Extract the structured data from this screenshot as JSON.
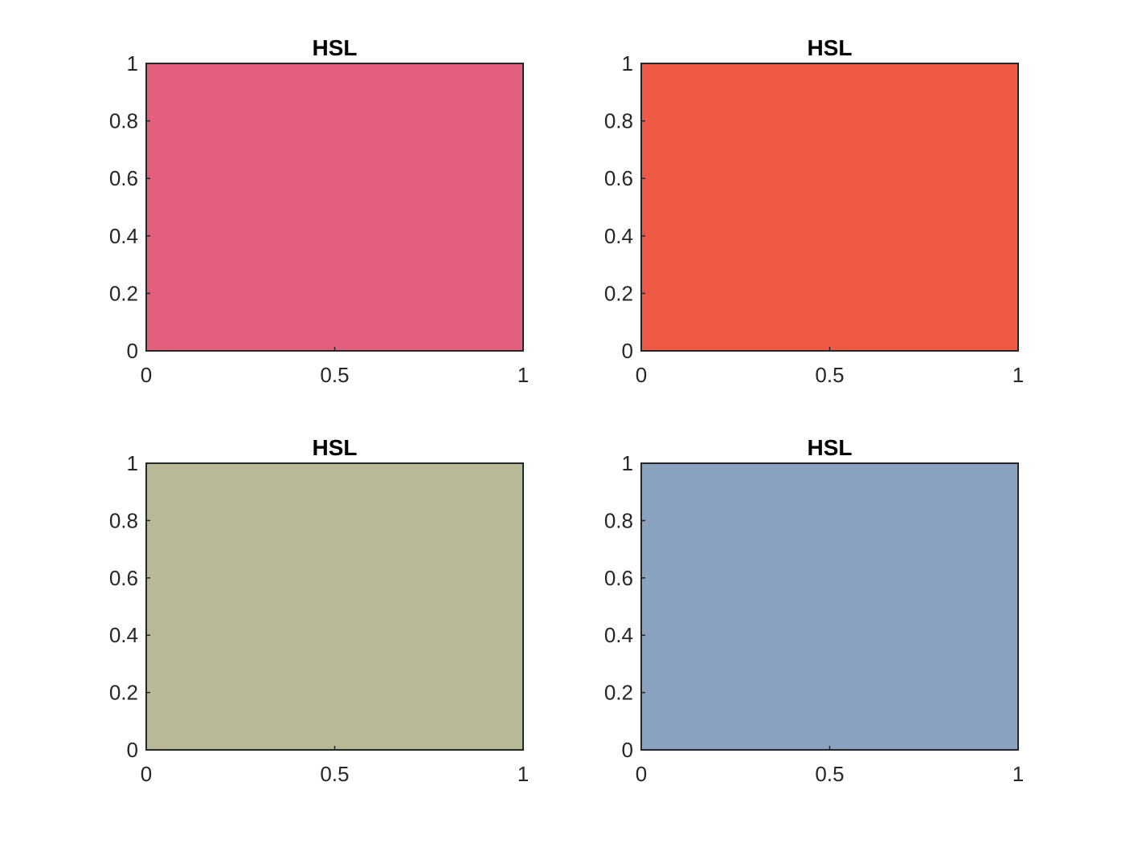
{
  "chart_data": [
    {
      "type": "area",
      "title": "HSL",
      "fill_color": "#e2607e",
      "x": [
        0,
        1
      ],
      "y": [
        1,
        1
      ],
      "xlim": [
        0,
        1
      ],
      "ylim": [
        0,
        1
      ],
      "xticks": [
        "0",
        "0.5",
        "1"
      ],
      "yticks": [
        "0",
        "0.2",
        "0.4",
        "0.6",
        "0.8",
        "1"
      ],
      "grid": false
    },
    {
      "type": "area",
      "title": "HSL",
      "fill_color": "#ef5a45",
      "x": [
        0,
        1
      ],
      "y": [
        1,
        1
      ],
      "xlim": [
        0,
        1
      ],
      "ylim": [
        0,
        1
      ],
      "xticks": [
        "0",
        "0.5",
        "1"
      ],
      "yticks": [
        "0",
        "0.2",
        "0.4",
        "0.6",
        "0.8",
        "1"
      ],
      "grid": false
    },
    {
      "type": "area",
      "title": "HSL",
      "fill_color": "#b8b996",
      "x": [
        0,
        1
      ],
      "y": [
        1,
        1
      ],
      "xlim": [
        0,
        1
      ],
      "ylim": [
        0,
        1
      ],
      "xticks": [
        "0",
        "0.5",
        "1"
      ],
      "yticks": [
        "0",
        "0.2",
        "0.4",
        "0.6",
        "0.8",
        "1"
      ],
      "grid": false
    },
    {
      "type": "area",
      "title": "HSL",
      "fill_color": "#88a2c0",
      "x": [
        0,
        1
      ],
      "y": [
        1,
        1
      ],
      "xlim": [
        0,
        1
      ],
      "ylim": [
        0,
        1
      ],
      "xticks": [
        "0",
        "0.5",
        "1"
      ],
      "yticks": [
        "0",
        "0.2",
        "0.4",
        "0.6",
        "0.8",
        "1"
      ],
      "grid": false
    }
  ]
}
